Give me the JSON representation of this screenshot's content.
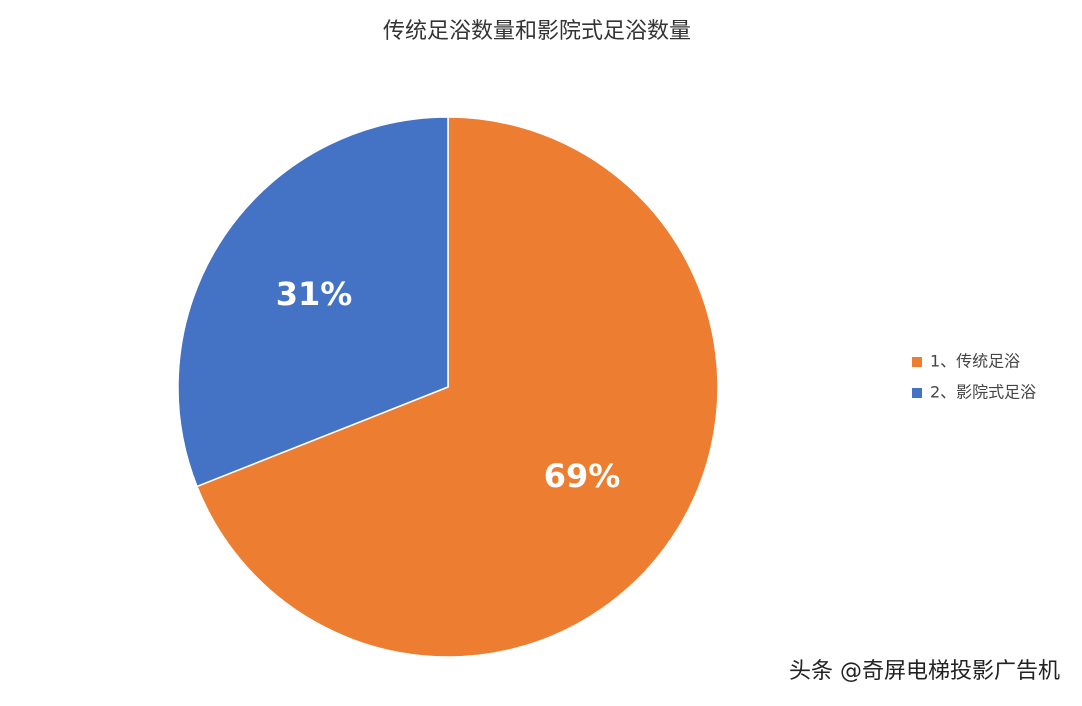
{
  "chart_data": {
    "type": "pie",
    "title": "传统足浴数量和影院式足浴数量",
    "categories": [
      "1、传统足浴",
      "2、影院式足浴"
    ],
    "values": [
      69,
      31
    ],
    "value_labels": [
      "69%",
      "31%"
    ],
    "colors": [
      "#ED7D31",
      "#4472C4"
    ],
    "legend": "right"
  },
  "watermark": "头条 @奇屏电梯投影广告机"
}
